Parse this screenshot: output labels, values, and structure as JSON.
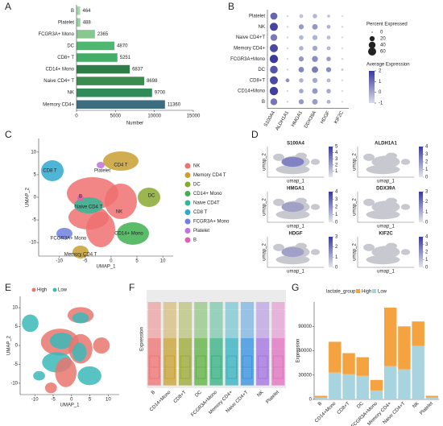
{
  "panel_labels": [
    "A",
    "B",
    "C",
    "D",
    "E",
    "F",
    "G"
  ],
  "chart_data": [
    {
      "type": "hbar",
      "categories": [
        "B",
        "Platelet",
        "FCGR3A+ Mono",
        "DC",
        "CD8+ T",
        "CD14+ Mono",
        "Naive CD4+ T",
        "NK",
        "Memory CD4+"
      ],
      "values": [
        464,
        488,
        2365,
        4870,
        5251,
        6837,
        8698,
        9700,
        11360
      ],
      "colors": [
        "#a5d8a8",
        "#96d09c",
        "#86c890",
        "#4fb870",
        "#42ad66",
        "#2e7d46",
        "#3c8c50",
        "#2f8c58",
        "#3d6e80"
      ],
      "xlim": [
        0,
        15000
      ],
      "xticks": [
        0,
        5000,
        10000,
        15000
      ],
      "xlabel": "Number"
    },
    {
      "type": "dot",
      "rows": [
        "Platelet",
        "NK",
        "Naive CD4+T",
        "Memory CD4+",
        "FCGR3A+Mono",
        "DC",
        "CD8+T",
        "CD14+Mono",
        "B"
      ],
      "columns": [
        "S100A4",
        "ALDH1A1",
        "HMGA1",
        "DDX39A",
        "HDGF",
        "KIF2C"
      ],
      "pct": [
        [
          45,
          1,
          10,
          15,
          5,
          1
        ],
        [
          60,
          1,
          20,
          25,
          10,
          1
        ],
        [
          40,
          1,
          15,
          20,
          10,
          1
        ],
        [
          60,
          1,
          15,
          20,
          10,
          1
        ],
        [
          65,
          1,
          20,
          30,
          15,
          1
        ],
        [
          55,
          1,
          25,
          35,
          20,
          2
        ],
        [
          60,
          10,
          15,
          20,
          10,
          1
        ],
        [
          65,
          1,
          15,
          25,
          15,
          1
        ],
        [
          40,
          1,
          20,
          25,
          10,
          1
        ]
      ],
      "avg": [
        [
          1.2,
          -0.8,
          -0.5,
          -0.3,
          -0.6,
          -0.9
        ],
        [
          1.8,
          -0.8,
          0.2,
          0.3,
          -0.2,
          -0.8
        ],
        [
          0.8,
          -0.8,
          -0.3,
          -0.2,
          -0.4,
          -0.9
        ],
        [
          1.7,
          -0.8,
          -0.2,
          0,
          -0.3,
          -0.9
        ],
        [
          2,
          -0.8,
          0.3,
          0.5,
          0.2,
          -0.8
        ],
        [
          1.5,
          -0.8,
          0.6,
          0.8,
          0.5,
          -0.6
        ],
        [
          1.7,
          0.4,
          -0.2,
          0,
          -0.3,
          -0.9
        ],
        [
          1.9,
          -0.8,
          0,
          0.3,
          0,
          -0.9
        ],
        [
          0.9,
          -0.8,
          0.3,
          0.2,
          -0.2,
          -0.9
        ]
      ],
      "size_title": "Percent Expressed",
      "size_ticks": [
        0,
        20,
        40,
        60
      ],
      "color_title": "Average Expression",
      "color_ticks": [
        2,
        1,
        0,
        -1
      ],
      "color_range": [
        -1,
        2
      ],
      "colors": [
        "#dcdce8",
        "#3a3a9c"
      ]
    },
    {
      "type": "umap",
      "legend": [
        "NK",
        "Memory CD4 T",
        "DC",
        "CD14+ Mono",
        "Naive CD4T",
        "CD8 T",
        "FCGR3A+ Mono",
        "Platelet",
        "B"
      ],
      "colors": [
        "#f07070",
        "#c8a030",
        "#8aa830",
        "#40b050",
        "#30b898",
        "#30a8d0",
        "#7080e0",
        "#c070e0",
        "#e060b0"
      ],
      "annotations": [
        "CD8 T",
        "Platelet",
        "CD4 T",
        "B",
        "Naive CD4 T",
        "DC",
        "NK",
        "CD14+ Mono",
        "FCGR3A+ Mono",
        "Memory CD4 T"
      ],
      "xlabel": "UMAP_1",
      "ylabel": "UMAP_2",
      "xlim": [
        -14,
        12
      ],
      "xticks": [
        -10,
        -5,
        0,
        5,
        10
      ],
      "ylim": [
        -13,
        13
      ],
      "yticks": [
        -10,
        -5,
        0,
        5,
        10
      ]
    },
    {
      "type": "feature",
      "genes": [
        "S100A4",
        "ALDH1A1",
        "HMGA1",
        "DDX39A",
        "HDGF",
        "KIF2C"
      ],
      "colorbar_ticks": [
        [
          1,
          2,
          3,
          4,
          5
        ],
        [
          0,
          1,
          2,
          3,
          4
        ],
        [
          0,
          1,
          2,
          3,
          4
        ],
        [
          0,
          1,
          2,
          3
        ],
        [
          0,
          1,
          2,
          3
        ],
        [
          0,
          1,
          2,
          3,
          4
        ]
      ],
      "colorbar_max": [
        5,
        4,
        4,
        3,
        3,
        4
      ],
      "xlabel": "umap_1",
      "ylabel": "umap_2"
    },
    {
      "type": "umap",
      "legend": [
        "High",
        "Low"
      ],
      "colors": [
        "#e8776f",
        "#3bb8b8"
      ],
      "xlabel": "UMAP_1",
      "ylabel": "UMAP_2",
      "xlim": [
        -14,
        13
      ],
      "xticks": [
        -10,
        -5,
        0,
        5,
        10
      ],
      "ylim": [
        -13,
        13
      ],
      "yticks": [
        -10,
        -5,
        0,
        5,
        10
      ]
    },
    {
      "type": "box",
      "categories": [
        "B",
        "CD14+Mono",
        "CD8+T",
        "DC",
        "FCGR3A+Mono",
        "Memory CD4+",
        "Naive CD4+T",
        "NK",
        "Platelet"
      ],
      "colors": [
        "#f07070",
        "#c8a030",
        "#9aa830",
        "#5cb040",
        "#30b080",
        "#30b0c0",
        "#3090e0",
        "#a070e0",
        "#e070c0"
      ],
      "ylabel": "Expression"
    },
    {
      "type": "stacked",
      "categories": [
        "B",
        "CD14+Mono",
        "CD8+T",
        "DC",
        "FCGR3A+Mono",
        "Memory CD4+",
        "Naive CD4+T",
        "NK",
        "Platelet"
      ],
      "legend_title": "lactate_group",
      "series": [
        {
          "name": "High",
          "color": "#f4a340",
          "values": [
            2000,
            38000,
            26000,
            23000,
            13000,
            72000,
            53000,
            30000,
            2000
          ]
        },
        {
          "name": "Low",
          "color": "#a8d4e0",
          "values": [
            2500,
            33000,
            31000,
            29000,
            11000,
            41000,
            37000,
            66000,
            2500
          ]
        }
      ],
      "ylim": [
        0,
        120000
      ],
      "yticks": [
        0,
        30000,
        60000,
        90000
      ],
      "ylabel": "Expression"
    }
  ]
}
